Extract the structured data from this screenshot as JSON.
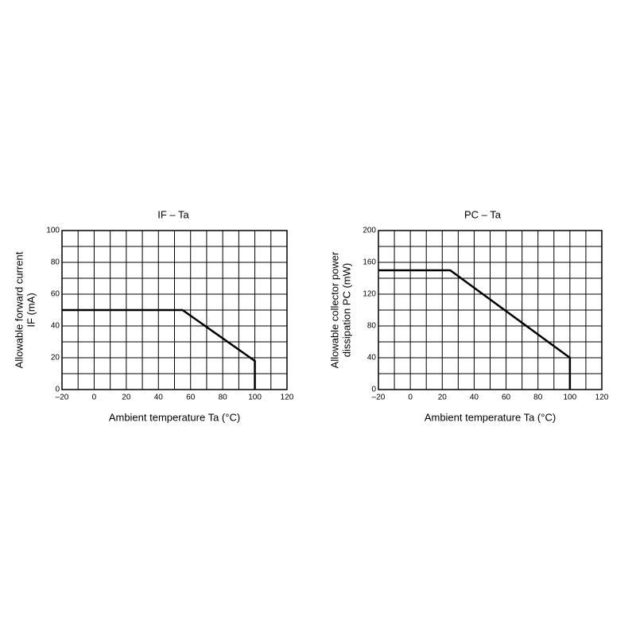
{
  "chart_data": [
    {
      "type": "line",
      "title": "IF – Ta",
      "xlabel": "Ambient temperature    Ta    (°C)",
      "ylabel": [
        "Allowable forward current",
        "IF    (mA)"
      ],
      "x": [
        -20,
        55,
        100,
        100
      ],
      "series": [
        {
          "name": null,
          "color": "#000000",
          "values": [
            50,
            50,
            18,
            0
          ]
        }
      ],
      "xlim": [
        -20,
        120
      ],
      "ylim": [
        0,
        100
      ],
      "xticks": [
        {
          "value": -20,
          "label": "–20"
        },
        0,
        20,
        40,
        60,
        80,
        100,
        120
      ],
      "yticks": [
        0,
        20,
        40,
        60,
        80,
        100
      ],
      "xminor": [
        -10,
        10,
        30,
        50,
        70,
        90,
        110
      ],
      "yminor": [
        10,
        30,
        50,
        70,
        90
      ],
      "grid": true
    },
    {
      "type": "line",
      "title": "PC – Ta",
      "xlabel": "Ambient temperature    Ta    (°C)",
      "ylabel": [
        "Allowable collector power",
        "dissipation    PC    (mW)"
      ],
      "x": [
        -20,
        25,
        100,
        100
      ],
      "series": [
        {
          "name": null,
          "color": "#000000",
          "values": [
            150,
            150,
            40,
            0
          ]
        }
      ],
      "xlim": [
        -20,
        120
      ],
      "ylim": [
        0,
        200
      ],
      "xticks": [
        {
          "value": -20,
          "label": "–20"
        },
        0,
        20,
        40,
        60,
        80,
        100,
        120
      ],
      "yticks": [
        0,
        40,
        80,
        120,
        160,
        200
      ],
      "xminor": [
        -10,
        10,
        30,
        50,
        70,
        90,
        110
      ],
      "yminor": [
        20,
        60,
        100,
        140,
        180
      ],
      "grid": true
    }
  ]
}
